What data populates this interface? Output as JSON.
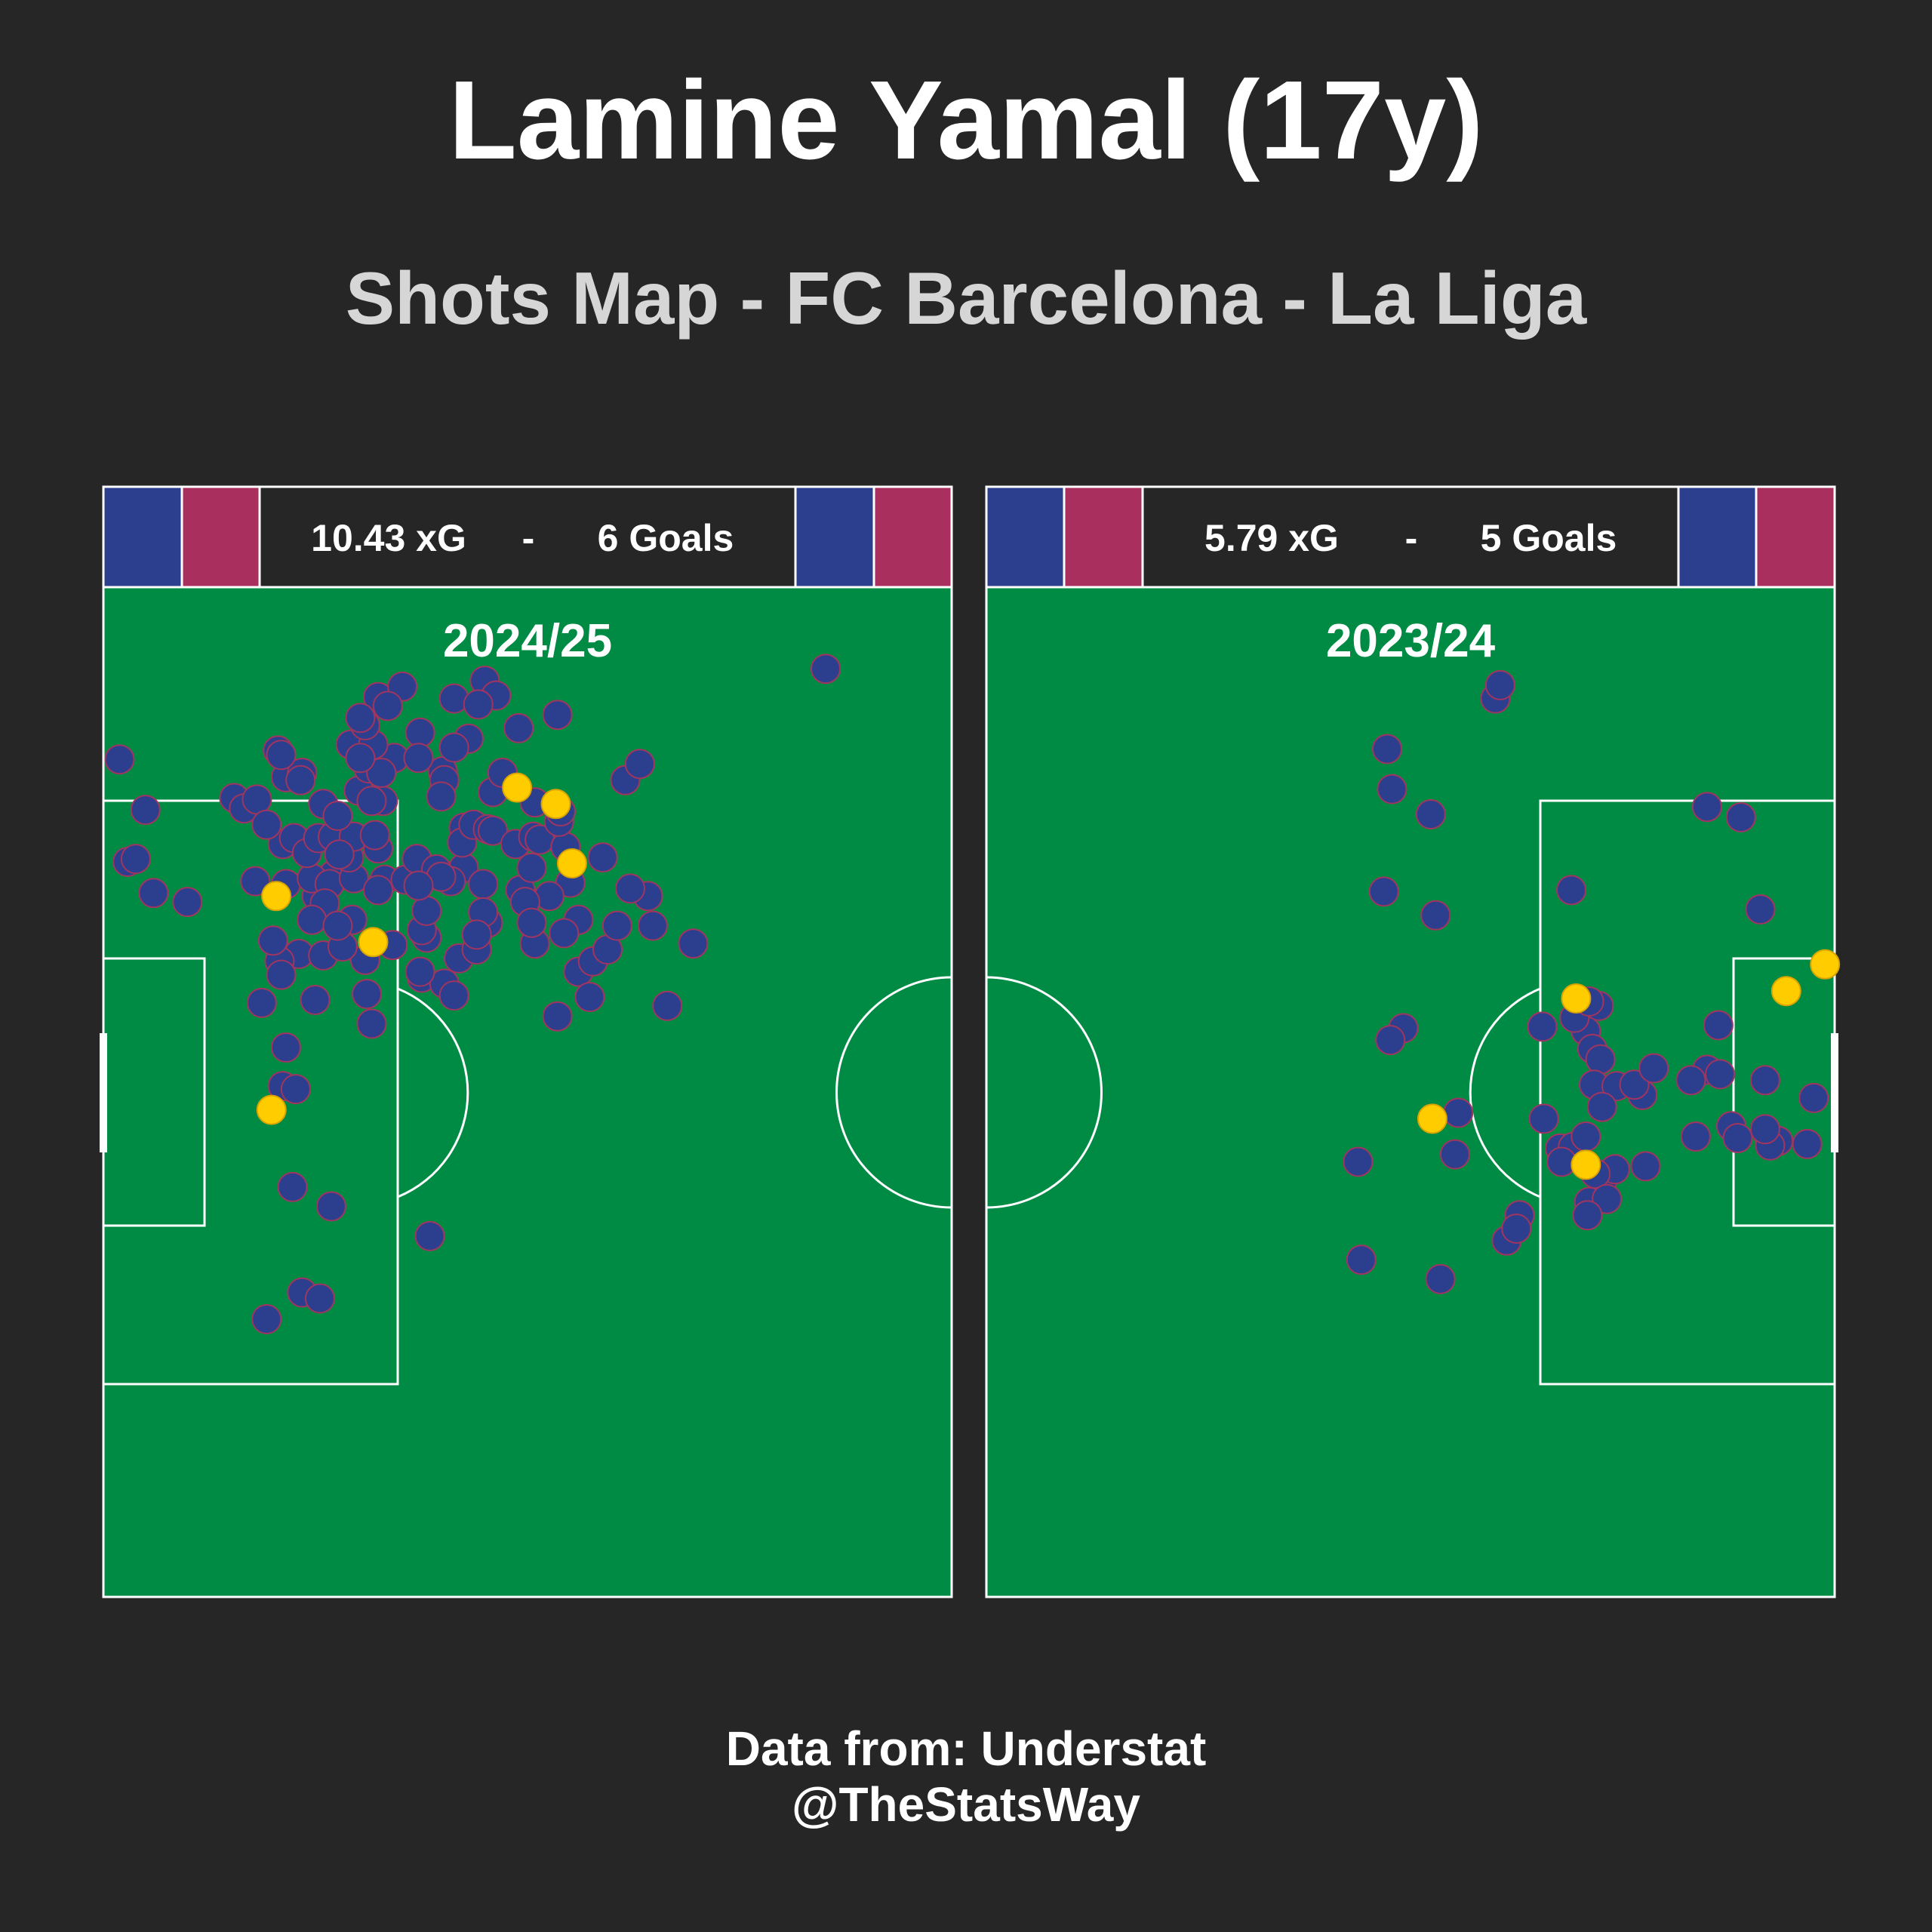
{
  "title": "Lamine Yamal (17y)",
  "subtitle": "Shots Map - FC Barcelona - La Liga",
  "footer": {
    "source": "Data from: Understat",
    "handle": "@TheStatsWay"
  },
  "colors": {
    "background": "#262626",
    "pitch": "#008b45",
    "lines": "#ffffff",
    "shot": "#2b3f8e",
    "shot_edge": "#a0355f",
    "goal": "#ffcc00",
    "barca_blue": "#2b3f8e",
    "barca_red": "#a9305e",
    "banner_bg": "#262626"
  },
  "chart_data": [
    {
      "type": "scatter",
      "title": "2024/25",
      "xg_label": "10.43 xG",
      "separator": "-",
      "goals_label": "6 Goals",
      "goal_side": "left",
      "x_unit": "metres from own goal line (pitch 105 x 68)",
      "xlim": [
        0,
        52.5
      ],
      "ylim": [
        0,
        68
      ],
      "shots": [
        [
          1.5,
          49.5
        ],
        [
          3.1,
          47.4
        ],
        [
          2.0,
          49.7
        ],
        [
          5.2,
          46.8
        ],
        [
          11.3,
          48.0
        ],
        [
          13.2,
          47.2
        ],
        [
          17.4,
          48.3
        ],
        [
          22.3,
          49.1
        ],
        [
          2.6,
          53.0
        ],
        [
          1.0,
          56.4
        ],
        [
          10.8,
          57.0
        ],
        [
          11.3,
          55.2
        ],
        [
          12.3,
          55.5
        ],
        [
          15.9,
          56.8
        ],
        [
          18.0,
          56.5
        ],
        [
          23.6,
          61.7
        ],
        [
          25.7,
          58.5
        ],
        [
          28.1,
          59.4
        ],
        [
          30.9,
          49.8
        ],
        [
          20.0,
          44.4
        ],
        [
          19.7,
          41.7
        ],
        [
          21.1,
          41.3
        ],
        [
          22.0,
          43.0
        ],
        [
          23.8,
          45.4
        ],
        [
          26.7,
          44.0
        ],
        [
          29.4,
          42.1
        ],
        [
          29.4,
          45.6
        ],
        [
          30.3,
          42.8
        ],
        [
          30.1,
          40.4
        ],
        [
          31.2,
          43.6
        ],
        [
          33.7,
          47.2
        ],
        [
          34.9,
          39.8
        ],
        [
          36.5,
          44.0
        ],
        [
          12.1,
          43.3
        ],
        [
          10.9,
          42.8
        ],
        [
          9.8,
          40.0
        ],
        [
          11.3,
          37.0
        ],
        [
          13.1,
          40.2
        ],
        [
          13.6,
          43.2
        ],
        [
          16.3,
          40.6
        ],
        [
          16.6,
          38.6
        ],
        [
          11.1,
          34.4
        ],
        [
          11.7,
          27.6
        ],
        [
          12.3,
          20.5
        ],
        [
          13.4,
          20.1
        ],
        [
          14.1,
          26.3
        ],
        [
          10.1,
          18.7
        ],
        [
          20.2,
          24.3
        ],
        [
          19.6,
          42.1
        ],
        [
          19.7,
          44.9
        ],
        [
          16.2,
          42.9
        ],
        [
          17.9,
          43.9
        ],
        [
          14.8,
          43.8
        ],
        [
          14.2,
          48.6
        ],
        [
          11.1,
          50.7
        ],
        [
          9.4,
          48.2
        ],
        [
          8.1,
          53.8
        ],
        [
          8.7,
          53.1
        ],
        [
          9.5,
          53.7
        ],
        [
          10.1,
          52.0
        ],
        [
          11.0,
          56.7
        ],
        [
          11.8,
          51.1
        ],
        [
          12.9,
          48.4
        ],
        [
          12.6,
          50.1
        ],
        [
          13.3,
          51.1
        ],
        [
          13.6,
          53.4
        ],
        [
          14.2,
          51.2
        ],
        [
          14.0,
          48.0
        ],
        [
          13.7,
          46.7
        ],
        [
          15.4,
          45.6
        ],
        [
          15.5,
          48.4
        ],
        [
          17.0,
          47.6
        ],
        [
          15.2,
          49.8
        ],
        [
          15.5,
          51.2
        ],
        [
          14.5,
          52.6
        ],
        [
          15.8,
          54.3
        ],
        [
          15.3,
          57.4
        ],
        [
          16.4,
          55.8
        ],
        [
          16.7,
          57.4
        ],
        [
          17.3,
          53.6
        ],
        [
          18.7,
          48.3
        ],
        [
          19.4,
          49.7
        ],
        [
          20.6,
          49.0
        ],
        [
          21.5,
          48.2
        ],
        [
          22.3,
          51.8
        ],
        [
          21.0,
          55.6
        ],
        [
          22.6,
          57.8
        ],
        [
          17.0,
          50.4
        ],
        [
          16.8,
          51.3
        ],
        [
          20.9,
          48.5
        ],
        [
          23.5,
          48.0
        ],
        [
          22.2,
          50.8
        ],
        [
          22.9,
          52.0
        ],
        [
          23.8,
          51.7
        ],
        [
          21.1,
          55.0
        ],
        [
          21.7,
          57.2
        ],
        [
          24.1,
          54.2
        ],
        [
          24.1,
          51.6
        ],
        [
          25.5,
          50.7
        ],
        [
          26.6,
          51.2
        ],
        [
          27.0,
          51.0
        ],
        [
          28.6,
          50.5
        ],
        [
          28.9,
          48.1
        ],
        [
          27.6,
          47.2
        ],
        [
          25.8,
          47.6
        ],
        [
          26.5,
          49.1
        ],
        [
          26.1,
          46.8
        ],
        [
          23.5,
          46.1
        ],
        [
          23.1,
          43.6
        ],
        [
          20.9,
          53.9
        ],
        [
          20.0,
          46.2
        ],
        [
          19.5,
          47.9
        ],
        [
          21.7,
          60.5
        ],
        [
          32.6,
          47.7
        ],
        [
          34.0,
          45.2
        ],
        [
          28.2,
          52.2
        ],
        [
          26.7,
          53.5
        ],
        [
          32.3,
          55.0
        ],
        [
          28.3,
          52.9
        ],
        [
          19.6,
          58.2
        ],
        [
          19.5,
          56.5
        ],
        [
          16.2,
          58.7
        ],
        [
          17.0,
          60.6
        ],
        [
          15.9,
          59.2
        ],
        [
          12.2,
          55.0
        ],
        [
          18.5,
          61.3
        ],
        [
          24.3,
          60.7
        ],
        [
          23.2,
          60.1
        ],
        [
          17.6,
          60.0
        ],
        [
          17.2,
          55.5
        ],
        [
          23.1,
          44.6
        ],
        [
          28.1,
          39.1
        ],
        [
          12.9,
          45.6
        ],
        [
          14.5,
          45.2
        ],
        [
          10.5,
          44.2
        ],
        [
          15.9,
          56.5
        ],
        [
          16.6,
          53.6
        ],
        [
          14.6,
          50.0
        ],
        [
          11.0,
          41.9
        ],
        [
          21.7,
          40.5
        ],
        [
          44.7,
          62.5
        ],
        [
          33.2,
          56.1
        ],
        [
          28.5,
          44.7
        ],
        [
          31.8,
          45.2
        ],
        [
          26.5,
          45.4
        ],
        [
          11.9,
          34.2
        ],
        [
          24.7,
          55.5
        ]
      ],
      "goals": [
        [
          10.7,
          47.2
        ],
        [
          16.7,
          44.1
        ],
        [
          29.0,
          49.4
        ],
        [
          28.0,
          53.4
        ],
        [
          10.4,
          32.8
        ],
        [
          25.6,
          54.5
        ]
      ]
    },
    {
      "type": "scatter",
      "title": "2023/24",
      "xg_label": "5.79 xG",
      "separator": "-",
      "goals_label": "5 Goals",
      "goal_side": "right",
      "x_unit": "metres from halfway line (pitch 105 x 68)",
      "xlim": [
        0,
        52.5
      ],
      "ylim": [
        0,
        68
      ],
      "shots": [
        [
          31.5,
          60.5
        ],
        [
          31.8,
          61.4
        ],
        [
          24.8,
          57.1
        ],
        [
          25.1,
          54.4
        ],
        [
          27.5,
          52.7
        ],
        [
          35.5,
          30.2
        ],
        [
          44.6,
          53.2
        ],
        [
          46.7,
          52.5
        ],
        [
          47.9,
          46.3
        ],
        [
          36.2,
          47.6
        ],
        [
          37.9,
          39.8
        ],
        [
          25.8,
          38.3
        ],
        [
          25.0,
          37.5
        ],
        [
          29.2,
          32.6
        ],
        [
          27.8,
          45.9
        ],
        [
          23.0,
          29.3
        ],
        [
          24.6,
          47.5
        ],
        [
          34.4,
          38.4
        ],
        [
          37.1,
          38.1
        ],
        [
          36.4,
          39.0
        ],
        [
          37.5,
          36.9
        ],
        [
          38.0,
          36.2
        ],
        [
          37.6,
          34.5
        ],
        [
          34.5,
          32.2
        ],
        [
          36.3,
          30.3
        ],
        [
          37.1,
          31.0
        ],
        [
          38.1,
          27.9
        ],
        [
          39.0,
          34.4
        ],
        [
          40.6,
          33.8
        ],
        [
          40.1,
          34.5
        ],
        [
          41.3,
          35.6
        ],
        [
          44.6,
          35.5
        ],
        [
          45.4,
          35.2
        ],
        [
          43.6,
          34.8
        ],
        [
          45.3,
          38.5
        ],
        [
          48.2,
          34.8
        ],
        [
          46.1,
          31.7
        ],
        [
          48.4,
          31.1
        ],
        [
          49.0,
          30.7
        ],
        [
          48.5,
          30.4
        ],
        [
          48.2,
          31.5
        ],
        [
          50.8,
          30.5
        ],
        [
          51.2,
          33.6
        ],
        [
          43.9,
          31.0
        ],
        [
          46.5,
          30.9
        ],
        [
          40.8,
          29.0
        ],
        [
          38.9,
          28.8
        ],
        [
          37.7,
          28.5
        ],
        [
          35.6,
          29.3
        ],
        [
          37.3,
          26.6
        ],
        [
          38.4,
          26.8
        ],
        [
          37.2,
          25.7
        ],
        [
          33.0,
          25.7
        ],
        [
          32.2,
          24.0
        ],
        [
          32.8,
          24.8
        ],
        [
          29.0,
          29.8
        ],
        [
          23.2,
          22.7
        ],
        [
          28.1,
          21.4
        ],
        [
          38.1,
          33.0
        ],
        [
          37.3,
          40.1
        ]
      ],
      "goals": [
        [
          51.9,
          42.6
        ],
        [
          49.5,
          40.8
        ],
        [
          36.5,
          40.3
        ],
        [
          27.6,
          32.2
        ],
        [
          37.1,
          29.1
        ]
      ]
    }
  ]
}
